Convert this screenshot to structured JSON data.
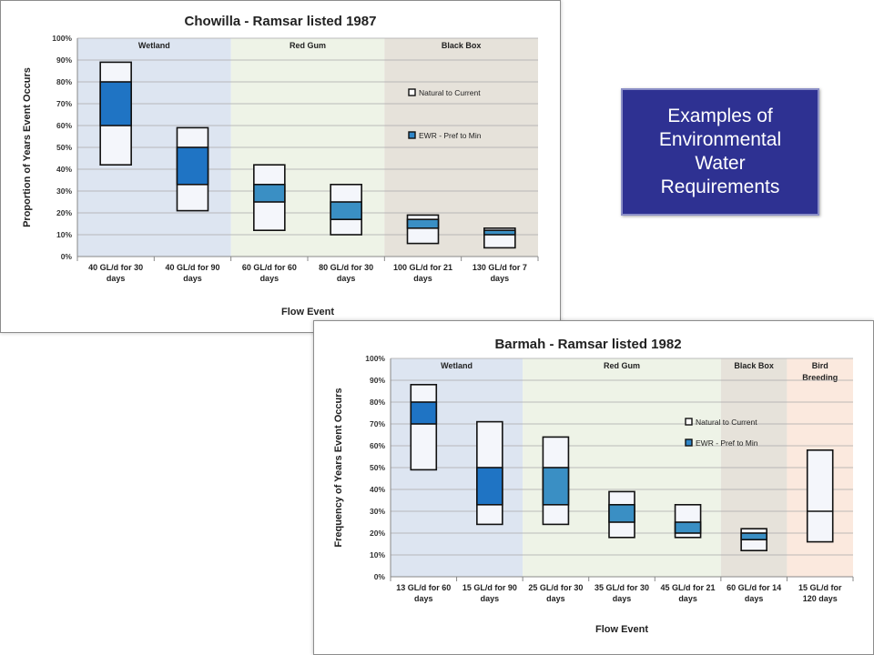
{
  "slide": {
    "callout_text": "Examples of Environmental Water Requirements",
    "colors": {
      "callout_bg": "#2e3192",
      "callout_text": "#ffffff",
      "natural_fill": "#dce4f2",
      "ewr_fill_dark": "#1f74c4",
      "ewr_fill_mid": "#3a8fc4",
      "wetland_zone": "#dde5f1",
      "redgum_zone": "#eef3e7",
      "blackbox_zone": "#e6e2da",
      "bird_zone": "#fbe9de"
    }
  },
  "chart_data": [
    {
      "type": "floating-bar",
      "title": "Chowilla - Ramsar listed 1987",
      "xlabel": "Flow Event",
      "ylabel": "Proportion of Years Event Occurs",
      "ylim": [
        0,
        100
      ],
      "yticks": [
        "0%",
        "10%",
        "20%",
        "30%",
        "40%",
        "50%",
        "60%",
        "70%",
        "80%",
        "90%",
        "100%"
      ],
      "grid": true,
      "legend_position": "right",
      "legend": [
        "Natural to Current",
        "EWR - Pref to Min"
      ],
      "zones": [
        {
          "label": "Wetland",
          "from": 0,
          "to": 2,
          "color": "#dde5f1"
        },
        {
          "label": "Red Gum",
          "from": 2,
          "to": 4,
          "color": "#eef3e7"
        },
        {
          "label": "Black Box",
          "from": 4,
          "to": 6,
          "color": "#e6e2da"
        }
      ],
      "categories": [
        [
          "40 GL/d for 30",
          "days"
        ],
        [
          "40 GL/d for 90",
          "days"
        ],
        [
          "60 GL/d for 60",
          "days"
        ],
        [
          "80 GL/d for 30",
          "days"
        ],
        [
          "100 GL/d for 21",
          "days"
        ],
        [
          "130 GL/d for 7",
          "days"
        ]
      ],
      "series": [
        {
          "name": "Natural to Current",
          "ranges": [
            [
              42,
              89
            ],
            [
              21,
              59
            ],
            [
              12,
              42
            ],
            [
              10,
              33
            ],
            [
              6,
              19
            ],
            [
              4,
              13
            ]
          ]
        },
        {
          "name": "EWR - Pref to Min",
          "ranges": [
            [
              60,
              80
            ],
            [
              33,
              50
            ],
            [
              25,
              33
            ],
            [
              17,
              25
            ],
            [
              13,
              17
            ],
            [
              10,
              12
            ]
          ],
          "fill": [
            "#1f74c4",
            "#1f74c4",
            "#3a8fc4",
            "#3a8fc4",
            "#3a8fc4",
            "#3a8fc4"
          ]
        }
      ]
    },
    {
      "type": "floating-bar",
      "title": "Barmah - Ramsar listed 1982",
      "xlabel": "Flow Event",
      "ylabel": "Frequency of Years Event Occurs",
      "ylim": [
        0,
        100
      ],
      "yticks": [
        "0%",
        "10%",
        "20%",
        "30%",
        "40%",
        "50%",
        "60%",
        "70%",
        "80%",
        "90%",
        "100%"
      ],
      "grid": true,
      "legend_position": "right",
      "legend": [
        "Natural to Current",
        "EWR - Pref to Min"
      ],
      "zones": [
        {
          "label": "Wetland",
          "from": 0,
          "to": 2,
          "color": "#dde5f1"
        },
        {
          "label": "Red Gum",
          "from": 2,
          "to": 5,
          "color": "#eef3e7"
        },
        {
          "label": "Black Box",
          "from": 5,
          "to": 6,
          "color": "#e6e2da"
        },
        {
          "label": "Bird\nBreeding",
          "from": 6,
          "to": 7,
          "color": "#fbe9de"
        }
      ],
      "categories": [
        [
          "13 GL/d for 60",
          "days"
        ],
        [
          "15 GL/d for 90",
          "days"
        ],
        [
          "25 GL/d for 30",
          "days"
        ],
        [
          "35 GL/d for 30",
          "days"
        ],
        [
          "45 GL/d for 21",
          "days"
        ],
        [
          "60 GL/d for 14",
          "days"
        ],
        [
          "15 GL/d for",
          "120 days"
        ]
      ],
      "series": [
        {
          "name": "Natural to Current",
          "ranges": [
            [
              49,
              88
            ],
            [
              24,
              71
            ],
            [
              24,
              64
            ],
            [
              18,
              39
            ],
            [
              18,
              33
            ],
            [
              12,
              22
            ],
            [
              16,
              58
            ]
          ],
          "midlines": [
            null,
            null,
            null,
            null,
            null,
            null,
            30
          ]
        },
        {
          "name": "EWR - Pref to Min",
          "ranges": [
            [
              70,
              80
            ],
            [
              33,
              50
            ],
            [
              33,
              50
            ],
            [
              25,
              33
            ],
            [
              20,
              25
            ],
            [
              17,
              20
            ],
            null
          ],
          "fill": [
            "#1f74c4",
            "#1f74c4",
            "#3a8fc4",
            "#3a8fc4",
            "#3a8fc4",
            "#3a8fc4",
            null
          ]
        }
      ]
    }
  ]
}
